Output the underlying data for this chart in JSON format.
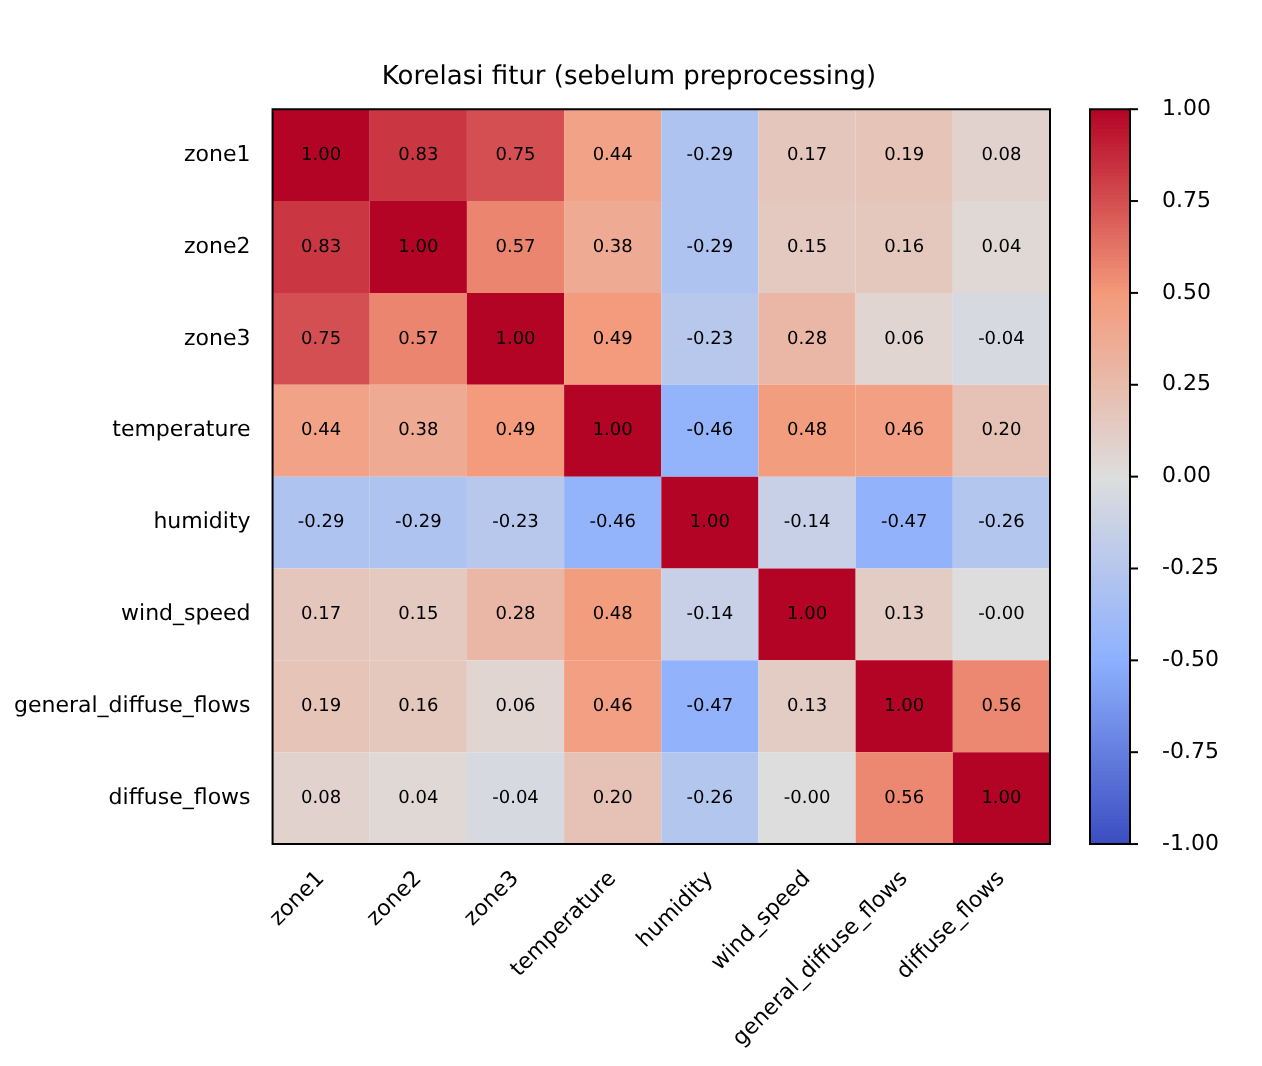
{
  "chart_data": {
    "type": "heatmap",
    "title": "Korelasi fitur (sebelum preprocessing)",
    "categories": [
      "zone1",
      "zone2",
      "zone3",
      "temperature",
      "humidity",
      "wind_speed",
      "general_diffuse_flows",
      "diffuse_flows"
    ],
    "y_categories": [
      "zone1",
      "zone2",
      "zone3",
      "temperature",
      "humidity",
      "wind_speed",
      "general_diffuse_flows",
      "diffuse_flows"
    ],
    "cells": [
      [
        1.0,
        0.83,
        0.75,
        0.44,
        -0.29,
        0.17,
        0.19,
        0.08
      ],
      [
        0.83,
        1.0,
        0.57,
        0.38,
        -0.29,
        0.15,
        0.16,
        0.04
      ],
      [
        0.75,
        0.57,
        1.0,
        0.49,
        -0.23,
        0.28,
        0.06,
        -0.04
      ],
      [
        0.44,
        0.38,
        0.49,
        1.0,
        -0.46,
        0.48,
        0.46,
        0.2
      ],
      [
        -0.29,
        -0.29,
        -0.23,
        -0.46,
        1.0,
        -0.14,
        -0.47,
        -0.26
      ],
      [
        0.17,
        0.15,
        0.28,
        0.48,
        -0.14,
        1.0,
        0.13,
        0
      ],
      [
        0.19,
        0.16,
        0.06,
        0.46,
        -0.47,
        0.13,
        1.0,
        0.56
      ],
      [
        0.08,
        0.04,
        -0.04,
        0.2,
        -0.26,
        0,
        0.56,
        1.0
      ]
    ],
    "cell_labels": [
      [
        "1.00",
        "0.83",
        "0.75",
        "0.44",
        "-0.29",
        "0.17",
        "0.19",
        "0.08"
      ],
      [
        "0.83",
        "1.00",
        "0.57",
        "0.38",
        "-0.29",
        "0.15",
        "0.16",
        "0.04"
      ],
      [
        "0.75",
        "0.57",
        "1.00",
        "0.49",
        "-0.23",
        "0.28",
        "0.06",
        "-0.04"
      ],
      [
        "0.44",
        "0.38",
        "0.49",
        "1.00",
        "-0.46",
        "0.48",
        "0.46",
        "0.20"
      ],
      [
        "-0.29",
        "-0.29",
        "-0.23",
        "-0.46",
        "1.00",
        "-0.14",
        "-0.47",
        "-0.26"
      ],
      [
        "0.17",
        "0.15",
        "0.28",
        "0.48",
        "-0.14",
        "1.00",
        "0.13",
        "-0.00"
      ],
      [
        "0.19",
        "0.16",
        "0.06",
        "0.46",
        "-0.47",
        "0.13",
        "1.00",
        "0.56"
      ],
      [
        "0.08",
        "0.04",
        "-0.04",
        "0.20",
        "-0.26",
        "-0.00",
        "0.56",
        "1.00"
      ]
    ],
    "clim": [
      -1,
      1
    ],
    "cticks": [
      {
        "value": -1,
        "label": "-1.00"
      },
      {
        "value": -0.75,
        "label": "-0.75"
      },
      {
        "value": -0.5,
        "label": "-0.50"
      },
      {
        "value": -0.25,
        "label": "-0.25"
      },
      {
        "value": 0,
        "label": "0.00"
      },
      {
        "value": 0.25,
        "label": "0.25"
      },
      {
        "value": 0.5,
        "label": "0.50"
      },
      {
        "value": 0.75,
        "label": "0.75"
      },
      {
        "value": 1,
        "label": "1.00"
      }
    ]
  }
}
